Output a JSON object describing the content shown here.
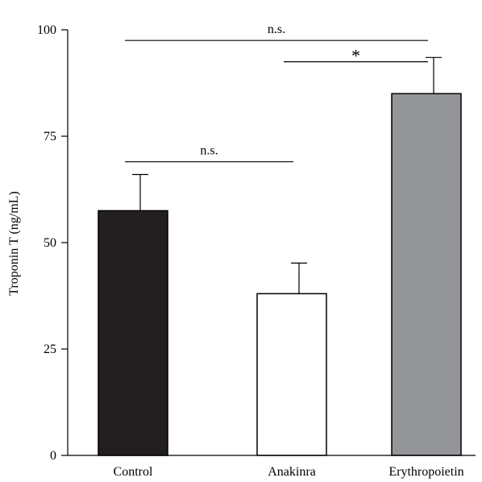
{
  "chart_data": {
    "type": "bar",
    "categories": [
      "Control",
      "Anakinra",
      "Erythropoietin"
    ],
    "values": [
      57.5,
      38,
      85
    ],
    "errors": [
      8.5,
      7.2,
      8.5
    ],
    "colors": [
      "#231f20",
      "#ffffff",
      "#939598"
    ],
    "ylabel": "Troponin T (ng/mL)",
    "xlabel": "",
    "ylim": [
      0,
      100
    ],
    "yticks": [
      0,
      25,
      50,
      75,
      100
    ],
    "grid": false,
    "comparisons": [
      {
        "from": 0,
        "to": 2,
        "y": 97.5,
        "label": "n.s."
      },
      {
        "from": 1,
        "to": 2,
        "y": 92.5,
        "label": "*"
      },
      {
        "from": 0,
        "to": 1,
        "y": 69,
        "label": "n.s."
      }
    ]
  }
}
